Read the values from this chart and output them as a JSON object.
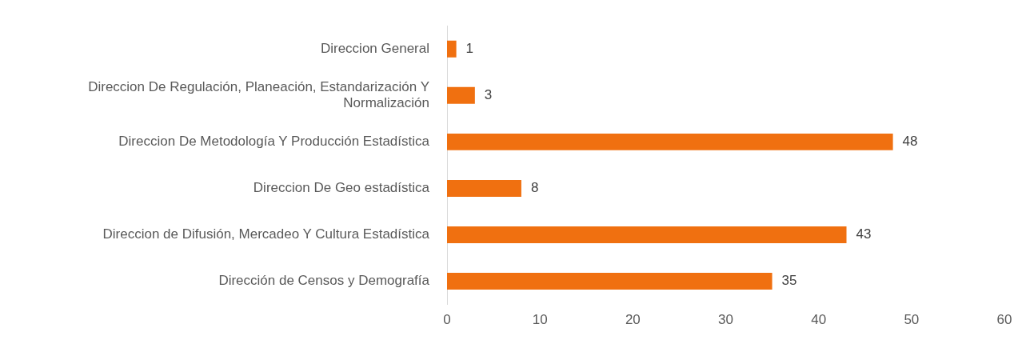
{
  "chart_data": {
    "type": "bar",
    "orientation": "horizontal",
    "categories": [
      "Direccion General",
      "Direccion De Regulación, Planeación, Estandarización Y Normalización",
      "Direccion De Metodología Y Producción Estadística",
      "Direccion De Geo estadística",
      "Direccion de Difusión, Mercadeo Y Cultura Estadística",
      "Dirección de Censos y Demografía"
    ],
    "values": [
      1,
      3,
      48,
      8,
      43,
      35
    ],
    "color": "#f07010",
    "xlim": [
      0,
      60
    ],
    "xticks": [
      0,
      10,
      20,
      30,
      40,
      50,
      60
    ],
    "data_labels": true
  }
}
